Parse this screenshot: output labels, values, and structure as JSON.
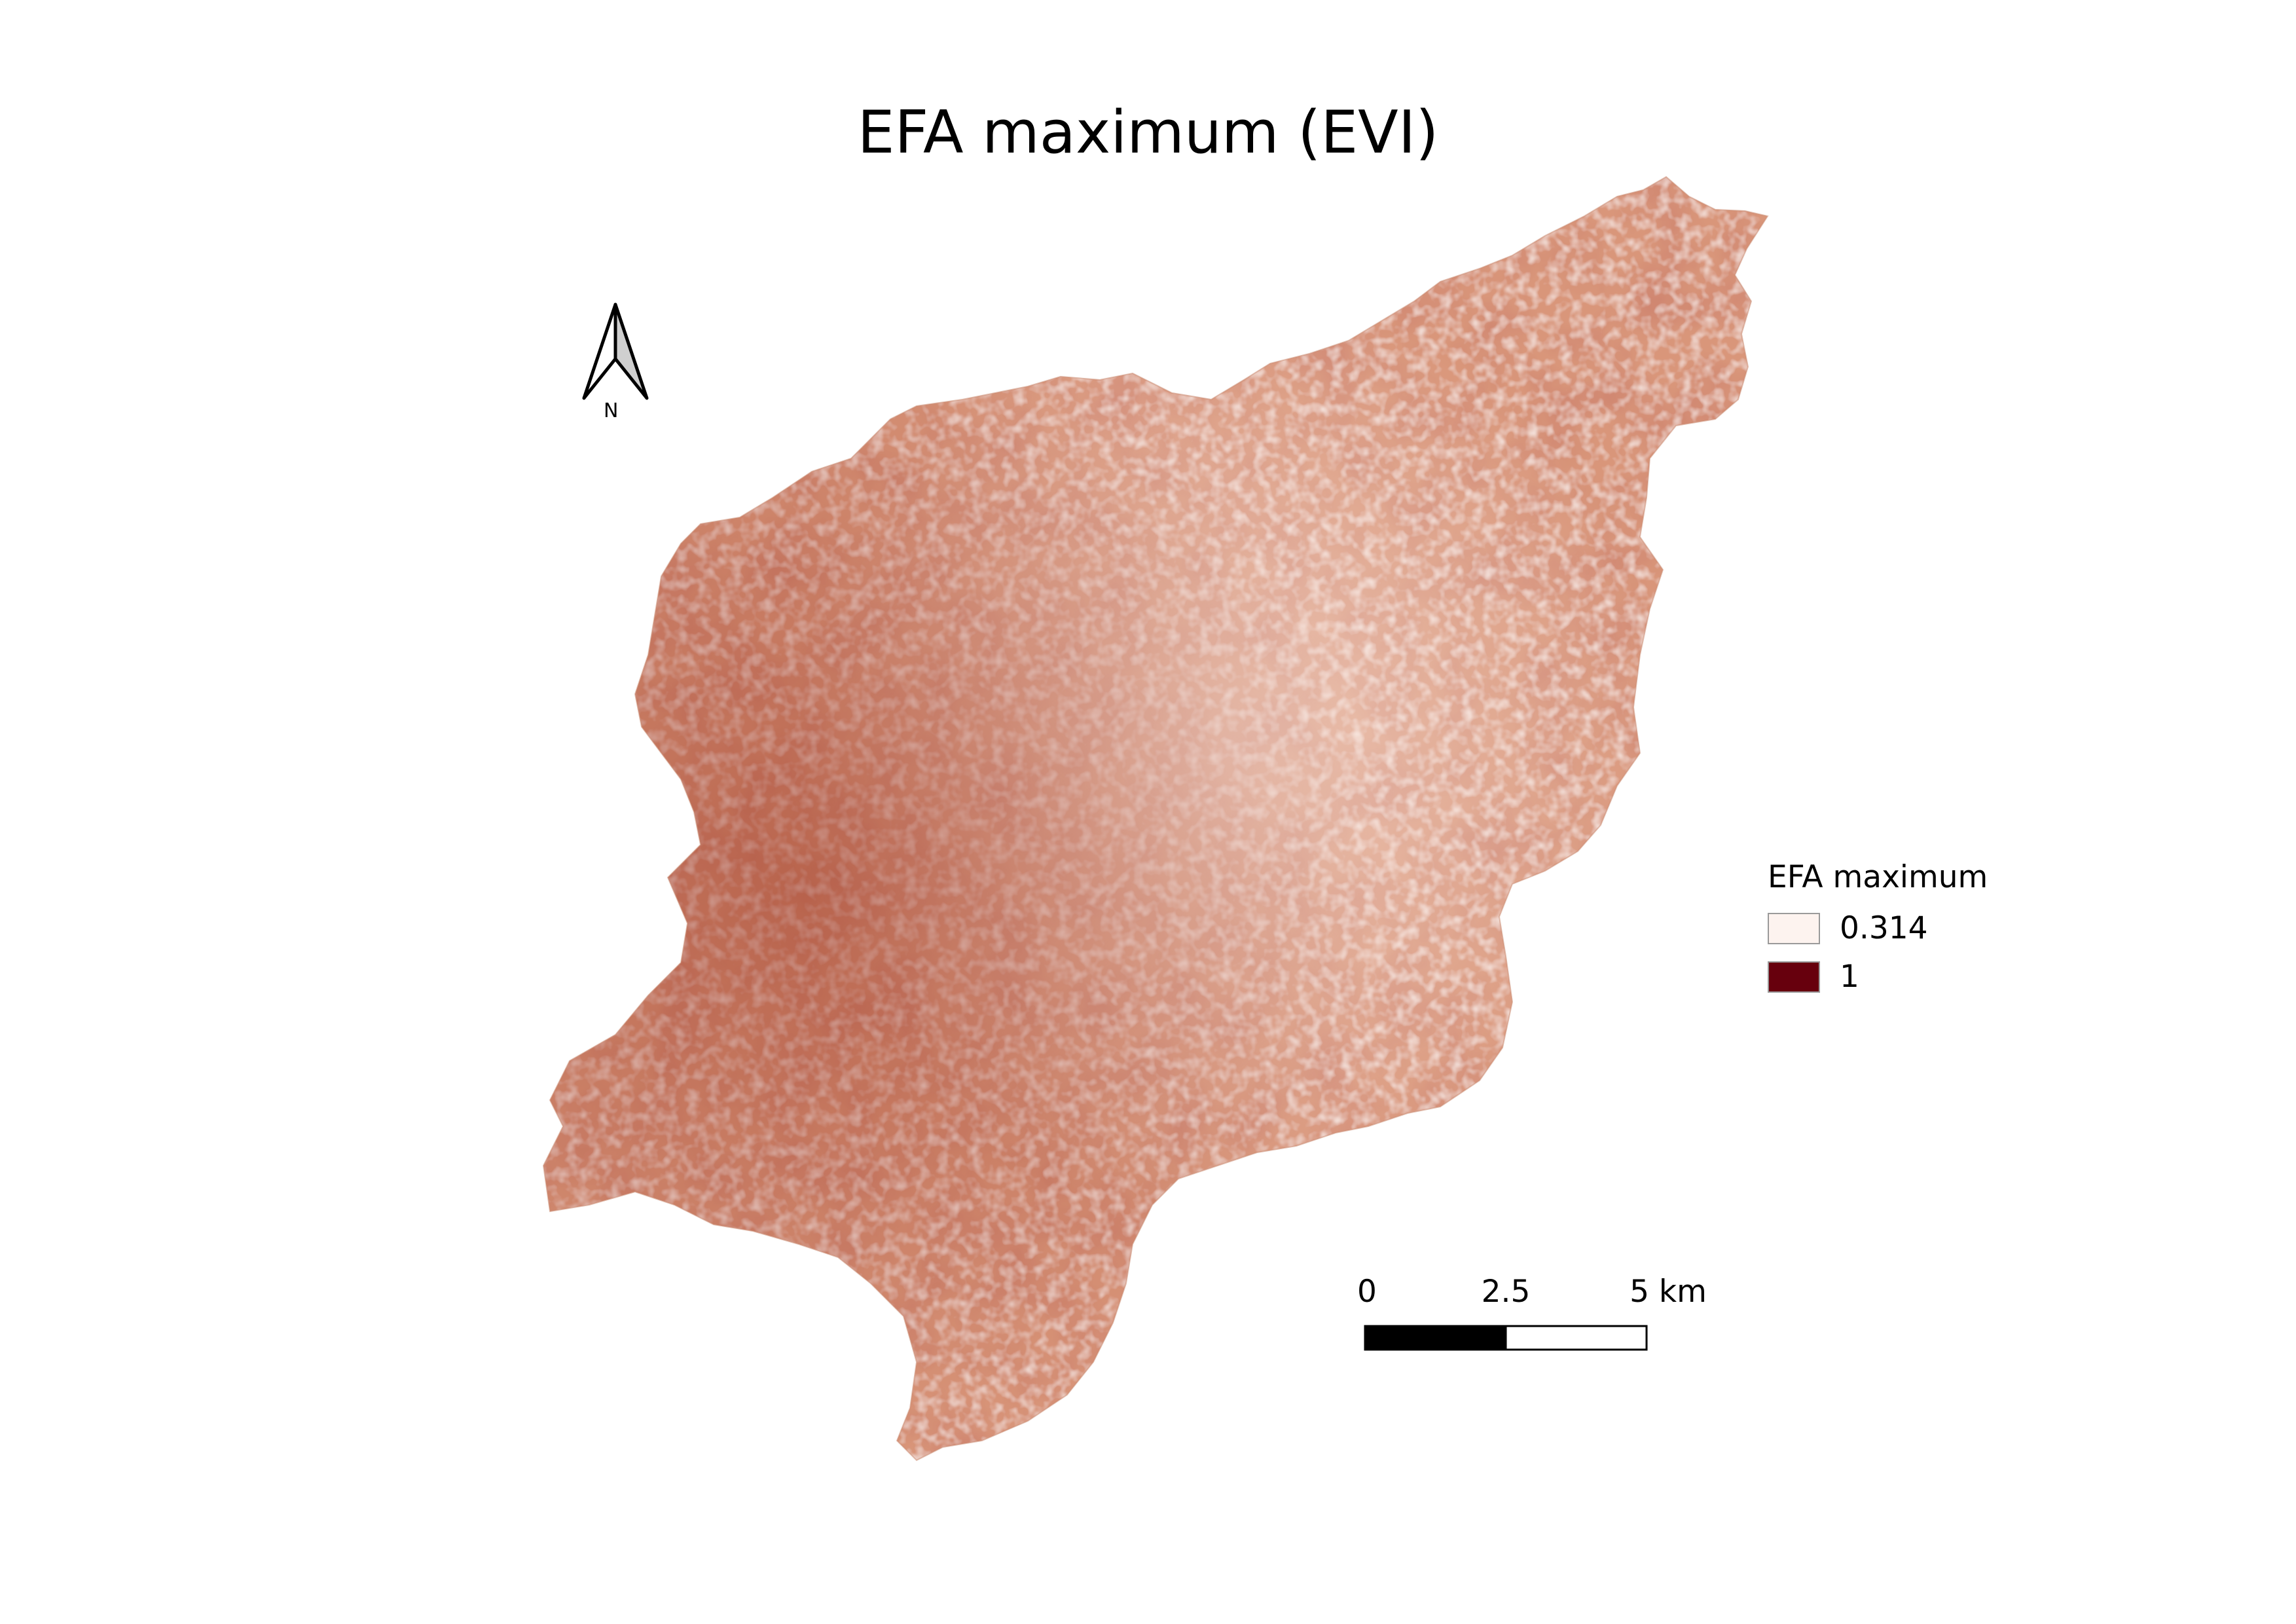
{
  "title": "EFA maximum (EVI)",
  "legend": {
    "title": "EFA maximum",
    "entries": [
      {
        "label": "0.314",
        "value": 0.314,
        "color": "#fdf3ef"
      },
      {
        "label": "1",
        "value": 1,
        "color": "#67000d"
      }
    ]
  },
  "scale_bar": {
    "labels": [
      "0",
      "2.5",
      "5 km"
    ],
    "values_km": [
      0,
      2.5,
      5
    ]
  },
  "north_arrow": {
    "label": "N",
    "icon": "north-arrow-icon"
  },
  "raster": {
    "variable": "EFA maximum (EVI)",
    "range": [
      0.314,
      1
    ],
    "ramp": [
      "#fdf3ef",
      "#e8b59a",
      "#c77a58",
      "#9e3b28",
      "#67000d"
    ]
  }
}
